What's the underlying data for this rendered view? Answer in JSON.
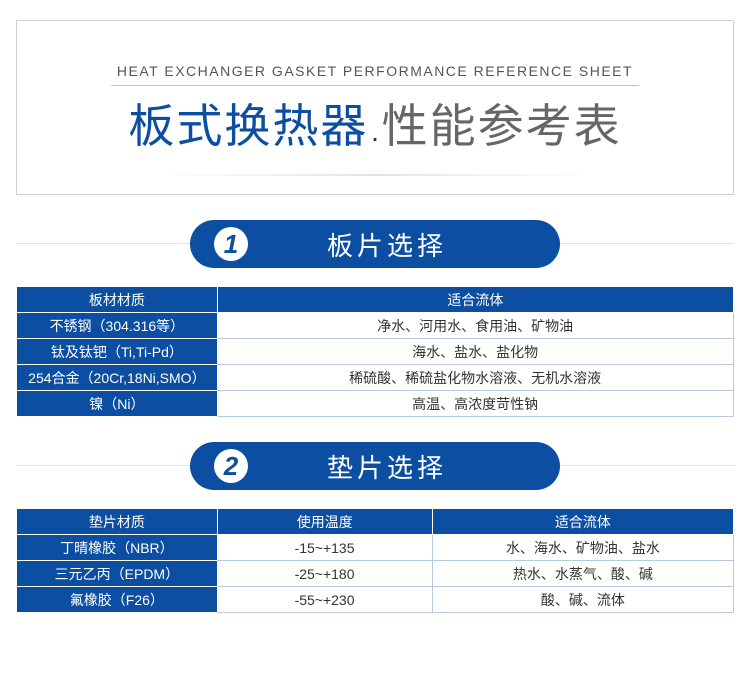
{
  "header": {
    "subtitle_en": "HEAT EXCHANGER GASKET PERFORMANCE REFERENCE SHEET",
    "title_blue": "板式换热器",
    "dot": "·",
    "title_gray": "性能参考表"
  },
  "section1": {
    "num": "1",
    "title": "板片选择",
    "head": [
      "板材材质",
      "适合流体"
    ],
    "rows": [
      [
        "不锈钢（304.316等）",
        "净水、河用水、食用油、矿物油"
      ],
      [
        "钛及钛钯（Ti,Ti-Pd）",
        "海水、盐水、盐化物"
      ],
      [
        "254合金（20Cr,18Ni,SMO）",
        "稀硫酸、稀硫盐化物水溶液、无机水溶液"
      ],
      [
        "镍（Ni）",
        "高温、高浓度苛性钠"
      ]
    ]
  },
  "section2": {
    "num": "2",
    "title": "垫片选择",
    "head": [
      "垫片材质",
      "使用温度",
      "适合流体"
    ],
    "rows": [
      [
        "丁晴橡胶（NBR）",
        "-15~+135",
        "水、海水、矿物油、盐水"
      ],
      [
        "三元乙丙（EPDM）",
        "-25~+180",
        "热水、水蒸气、酸、碱"
      ],
      [
        "氟橡胶（F26）",
        "-55~+230",
        "酸、碱、流体"
      ]
    ]
  }
}
